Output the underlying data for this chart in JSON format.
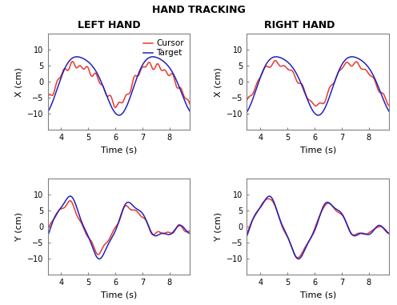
{
  "title": "HAND TRACKING",
  "col_titles": [
    "LEFT HAND",
    "RIGHT HAND"
  ],
  "xlim": [
    3.5,
    8.75
  ],
  "ylim": [
    -15,
    15
  ],
  "xticks": [
    4,
    5,
    6,
    7,
    8
  ],
  "yticks": [
    -10,
    -5,
    0,
    5,
    10
  ],
  "xlabel": "Time (s)",
  "ylabel_top": "X (cm)",
  "ylabel_bot": "Y (cm)",
  "cursor_color": "#e8392e",
  "target_color": "#2222bb",
  "legend_labels": [
    "Cursor",
    "Target"
  ],
  "title_fontsize": 9,
  "col_title_fontsize": 9,
  "axis_label_fontsize": 8,
  "tick_fontsize": 7,
  "legend_fontsize": 7.5,
  "line_width": 1.1
}
